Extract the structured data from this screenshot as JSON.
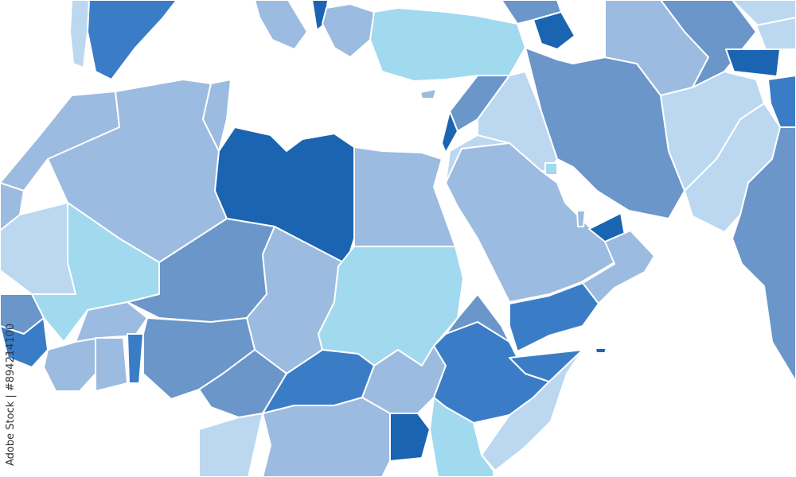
{
  "credit": "Adobe Stock | #894214100",
  "palette": {
    "dark": "#1b64b2",
    "medium": "#3a7dc6",
    "steel": "#6a96c9",
    "light": "#9cbbe0",
    "pale": "#bcd8f0",
    "cyan": "#a1d9ef"
  }
}
